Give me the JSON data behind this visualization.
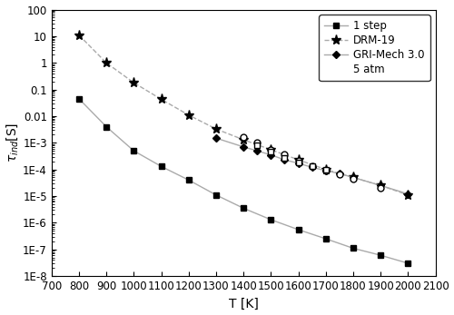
{
  "title": "",
  "xlabel": "T [K]",
  "xlim": [
    700,
    2100
  ],
  "ylim_log_min": -8,
  "ylim_log_max": 2,
  "x_ticks": [
    700,
    800,
    900,
    1000,
    1100,
    1200,
    1300,
    1400,
    1500,
    1600,
    1700,
    1800,
    1900,
    2000,
    2100
  ],
  "one_step_T": [
    800,
    900,
    1000,
    1100,
    1200,
    1300,
    1400,
    1500,
    1600,
    1700,
    1800,
    1900,
    2000
  ],
  "one_step_tau": [
    0.045,
    0.004,
    0.0005,
    0.00013,
    4e-05,
    1.1e-05,
    3.5e-06,
    1.3e-06,
    5.5e-07,
    2.5e-07,
    1.1e-07,
    6e-08,
    3e-08
  ],
  "drm19_T": [
    800,
    900,
    1000,
    1100,
    1200,
    1300,
    1400,
    1500,
    1600,
    1700,
    1800,
    1900,
    2000
  ],
  "drm19_tau": [
    11.0,
    1.0,
    0.18,
    0.043,
    0.011,
    0.0033,
    0.0013,
    0.00055,
    0.00023,
    0.0001,
    5e-05,
    2.5e-05,
    1.1e-05
  ],
  "gri_T": [
    1300,
    1400,
    1450,
    1500,
    1550,
    1600,
    1650,
    1700,
    1750,
    1800,
    1900,
    2000
  ],
  "gri_tau": [
    0.0015,
    0.0007,
    0.0005,
    0.00035,
    0.00023,
    0.00017,
    0.00012,
    9e-05,
    7e-05,
    5e-05,
    2.5e-05,
    1.2e-05
  ],
  "exp_circle_T": [
    1400,
    1450,
    1500,
    1550,
    1600,
    1650,
    1700,
    1750,
    1800,
    1900
  ],
  "exp_circle_tau": [
    0.0016,
    0.001,
    0.00055,
    0.00038,
    0.00022,
    0.00013,
    9e-05,
    6.5e-05,
    4.5e-05,
    2e-05
  ],
  "exp_square_T": [
    1450,
    1500,
    1550,
    1600,
    1650,
    1700
  ],
  "exp_square_tau": [
    0.0008,
    0.00045,
    0.00028,
    0.00018,
    0.00013,
    0.0001
  ],
  "line_color": "#aaaaaa",
  "marker_color": "#000000",
  "legend_fontsize": 8.5,
  "axis_fontsize": 10,
  "tick_fontsize": 8.5,
  "ytick_vals": [
    1e-08,
    1e-07,
    1e-06,
    1e-05,
    0.0001,
    0.001,
    0.01,
    0.1,
    1.0,
    10.0,
    100.0
  ],
  "ytick_labels": [
    "1E-8",
    "1E-7",
    "1E-6",
    "1E-5",
    "1E-4",
    "1E-3",
    "0.01",
    "0.1",
    "1",
    "10",
    "100"
  ]
}
